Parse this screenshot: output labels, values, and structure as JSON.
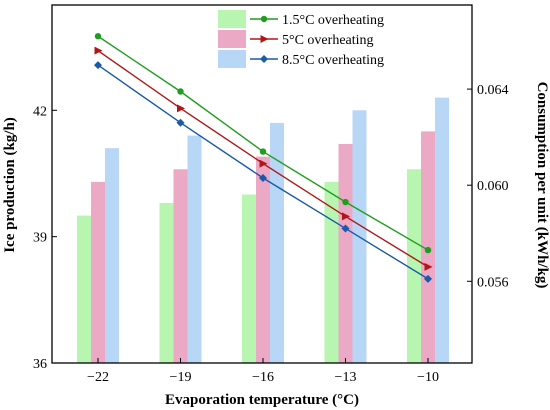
{
  "chart_data": {
    "type": "bar+line",
    "categories": [
      "−22",
      "−19",
      "−16",
      "−13",
      "−10"
    ],
    "x_values": [
      -22,
      -19,
      -16,
      -13,
      -10
    ],
    "xlabel": "Evaporation temperature (°C)",
    "ylabel_left": "Ice production (kg/h)",
    "ylabel_right": "Consumption per unit (kWh/kg)",
    "ylim_left": [
      36,
      44.5
    ],
    "yticks_left": [
      36,
      39,
      42
    ],
    "ylim_right": [
      0.0526,
      0.0675
    ],
    "yticks_right": [
      0.056,
      0.06,
      0.064
    ],
    "ytick_labels_right": [
      "0.056",
      "0.060",
      "0.064"
    ],
    "legend_position": "top-center",
    "bar_series": [
      {
        "name": "1.5°C overheating",
        "color": "#b8f5b0",
        "values": [
          39.5,
          39.8,
          40.0,
          40.3,
          40.6
        ]
      },
      {
        "name": "5°C overheating",
        "color": "#eba9c6",
        "values": [
          40.3,
          40.6,
          40.9,
          41.2,
          41.5
        ]
      },
      {
        "name": "8.5°C overheating",
        "color": "#b8d6f5",
        "values": [
          41.1,
          41.4,
          41.7,
          42.0,
          42.3
        ]
      }
    ],
    "line_series": [
      {
        "name": "1.5°C overheating",
        "color": "#1e9e1e",
        "marker": "circle",
        "values": [
          0.0662,
          0.0639,
          0.0614,
          0.0593,
          0.0573
        ]
      },
      {
        "name": "5°C overheating",
        "color": "#b01818",
        "marker": "triangle-right",
        "values": [
          0.0656,
          0.0632,
          0.0609,
          0.0587,
          0.0566
        ]
      },
      {
        "name": "8.5°C overheating",
        "color": "#1a5aa8",
        "marker": "diamond",
        "values": [
          0.065,
          0.0626,
          0.0603,
          0.0582,
          0.0561
        ]
      }
    ]
  }
}
